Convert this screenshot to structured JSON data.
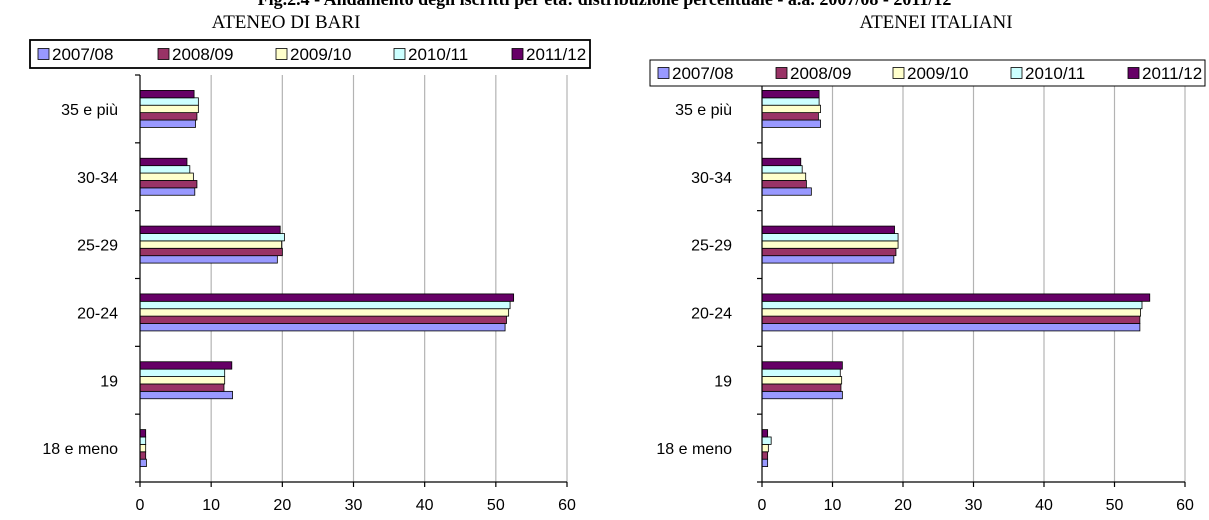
{
  "figure_title": "Fig.2.4 - Andamento degli iscritti per età: distribuzione percentuale - a.a. 2007/08 - 2011/12",
  "colors": {
    "2007/08": "#9999ff",
    "2008/09": "#993366",
    "2009/10": "#ffffcc",
    "2010/11": "#ccffff",
    "2011/12": "#660066"
  },
  "chart_data": [
    {
      "type": "bar",
      "orientation": "horizontal",
      "title": "ATENEO DI BARI",
      "categories": [
        "18 e meno",
        "19",
        "20-24",
        "25-29",
        "30-34",
        "35 e più"
      ],
      "series": [
        {
          "name": "2007/08",
          "values": [
            0.9,
            13.0,
            51.3,
            19.3,
            7.7,
            7.8
          ]
        },
        {
          "name": "2008/09",
          "values": [
            0.8,
            11.8,
            51.5,
            20.0,
            8.0,
            8.0
          ]
        },
        {
          "name": "2009/10",
          "values": [
            0.8,
            11.9,
            51.8,
            19.9,
            7.5,
            8.2
          ]
        },
        {
          "name": "2010/11",
          "values": [
            0.8,
            11.9,
            52.0,
            20.3,
            7.0,
            8.2
          ]
        },
        {
          "name": "2011/12",
          "values": [
            0.8,
            12.9,
            52.5,
            19.7,
            6.6,
            7.6
          ]
        }
      ],
      "xlim": [
        0,
        60
      ],
      "xticks": [
        0,
        10,
        20,
        30,
        40,
        50,
        60
      ],
      "grid": true,
      "legend": "top"
    },
    {
      "type": "bar",
      "orientation": "horizontal",
      "title": "ATENEI ITALIANI",
      "categories": [
        "18 e meno",
        "19",
        "20-24",
        "25-29",
        "30-34",
        "35 e più"
      ],
      "series": [
        {
          "name": "2007/08",
          "values": [
            0.8,
            11.4,
            53.6,
            18.7,
            7.0,
            8.3
          ]
        },
        {
          "name": "2008/09",
          "values": [
            0.8,
            11.2,
            53.6,
            19.0,
            6.3,
            8.0
          ]
        },
        {
          "name": "2009/10",
          "values": [
            0.9,
            11.3,
            53.7,
            19.3,
            6.2,
            8.3
          ]
        },
        {
          "name": "2010/11",
          "values": [
            1.3,
            11.1,
            53.9,
            19.3,
            5.7,
            8.1
          ]
        },
        {
          "name": "2011/12",
          "values": [
            0.8,
            11.4,
            55.0,
            18.8,
            5.5,
            8.1
          ]
        }
      ],
      "xlim": [
        0,
        60
      ],
      "xticks": [
        0,
        10,
        20,
        30,
        40,
        50,
        60
      ],
      "grid": true,
      "legend": "top"
    }
  ]
}
